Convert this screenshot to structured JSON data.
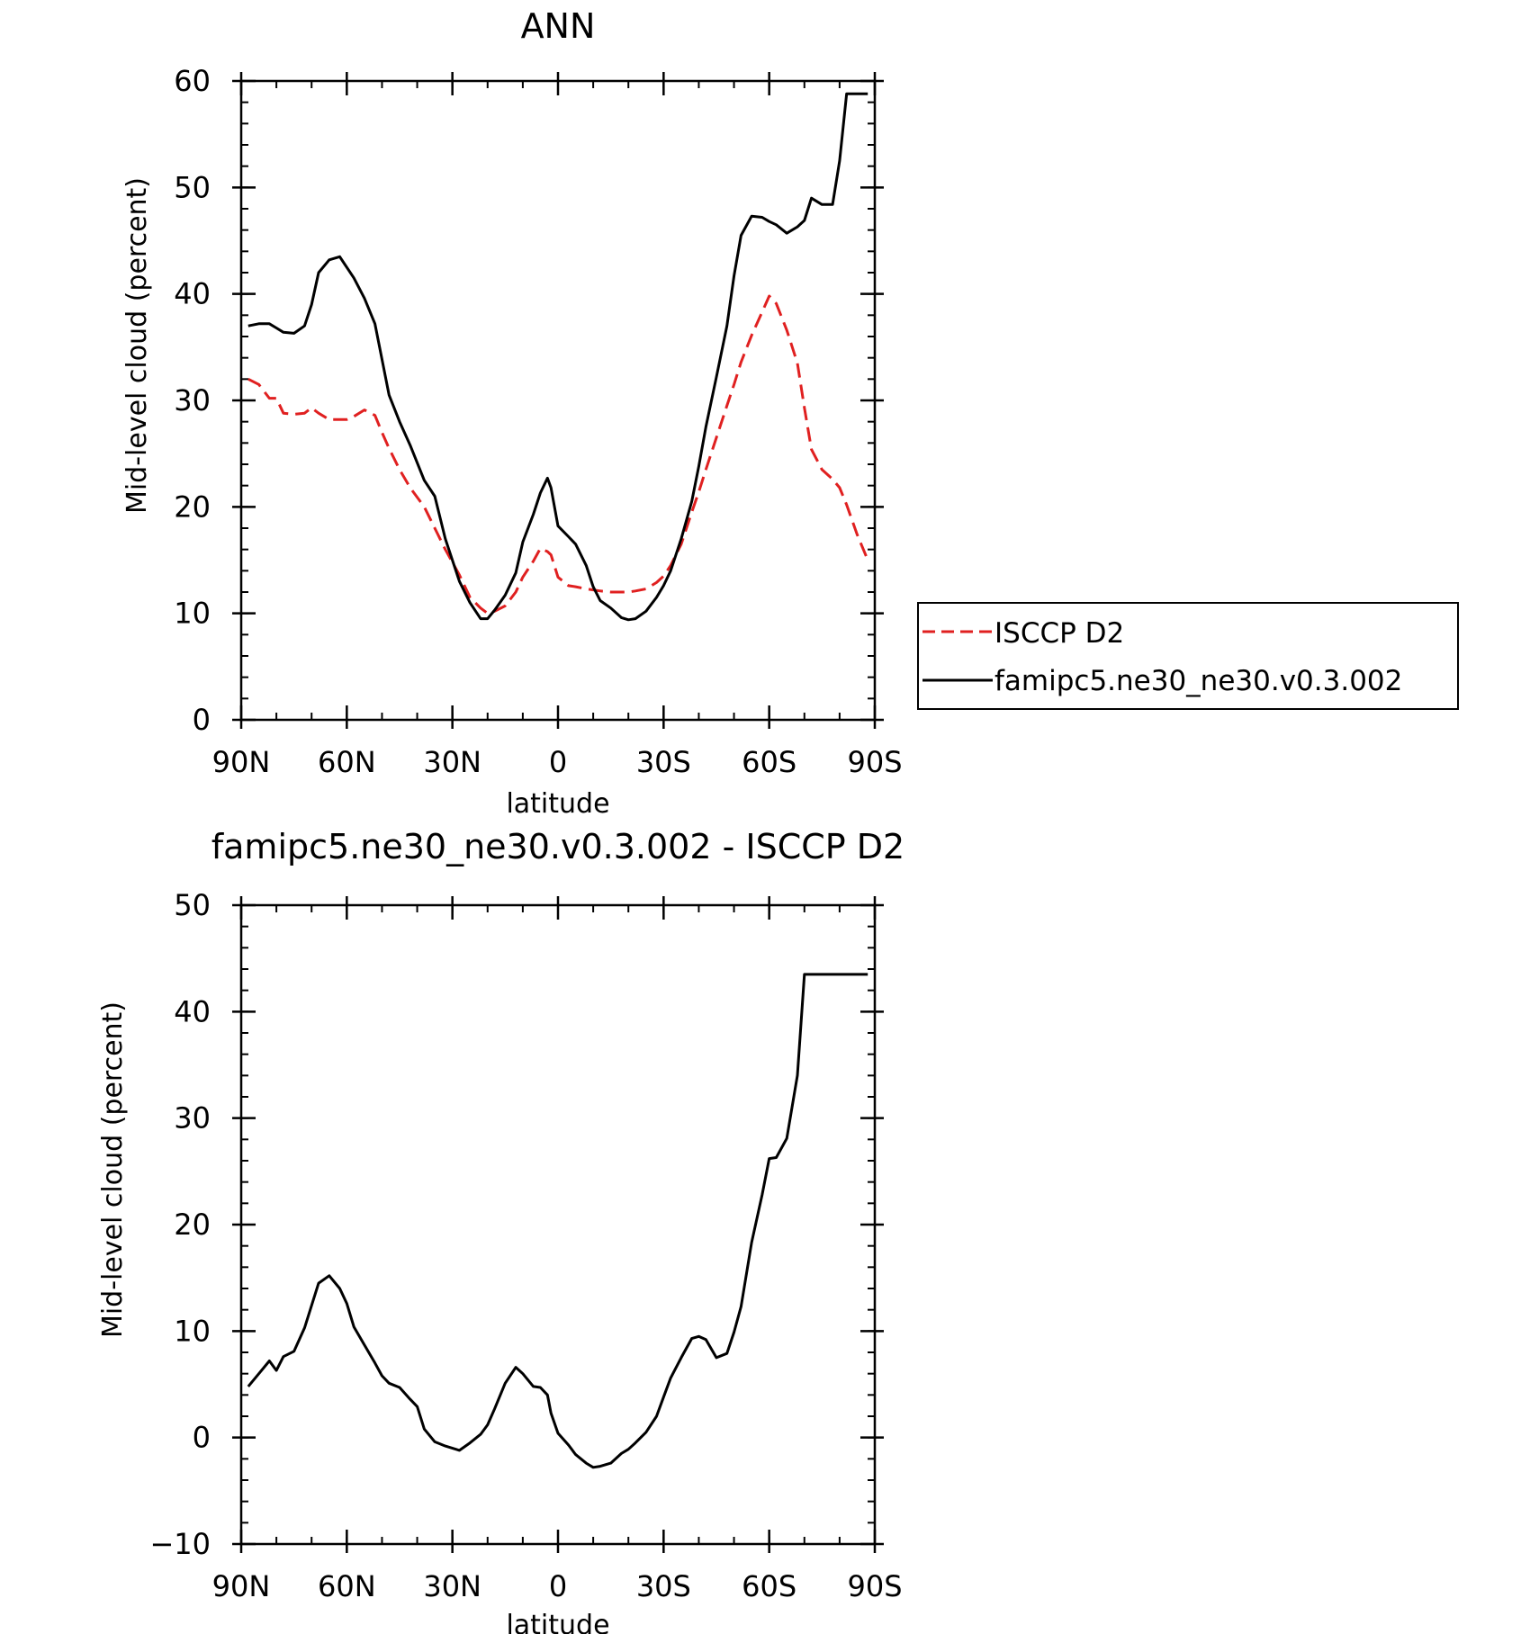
{
  "chart_data": [
    {
      "type": "line",
      "title": "ANN",
      "xlabel": "latitude",
      "ylabel": "Mid-level cloud (percent)",
      "xlim": [
        90,
        -90
      ],
      "ylim": [
        0,
        60
      ],
      "x_ticks": [
        {
          "value": 90,
          "label": "90N"
        },
        {
          "value": 60,
          "label": "60N"
        },
        {
          "value": 30,
          "label": "30N"
        },
        {
          "value": 0,
          "label": "0"
        },
        {
          "value": -30,
          "label": "30S"
        },
        {
          "value": -60,
          "label": "60S"
        },
        {
          "value": -90,
          "label": "90S"
        }
      ],
      "y_ticks": [
        {
          "value": 0,
          "label": "0"
        },
        {
          "value": 10,
          "label": "10"
        },
        {
          "value": 20,
          "label": "20"
        },
        {
          "value": 30,
          "label": "30"
        },
        {
          "value": 40,
          "label": "40"
        },
        {
          "value": 50,
          "label": "50"
        },
        {
          "value": 60,
          "label": "60"
        }
      ],
      "legend": "right",
      "series": [
        {
          "name": "ISCCP D2",
          "color": "#e02020",
          "style": "dashed",
          "x": [
            88,
            85,
            82,
            80,
            78,
            75,
            72,
            70,
            68,
            65,
            62,
            60,
            58,
            55,
            52,
            50,
            48,
            45,
            42,
            38,
            35,
            32,
            28,
            25,
            22,
            20,
            18,
            15,
            12,
            10,
            7,
            5,
            3,
            2,
            0,
            -3,
            -5,
            -8,
            -10,
            -12,
            -15,
            -18,
            -20,
            -22,
            -25,
            -28,
            -30,
            -32,
            -35,
            -38,
            -40,
            -42,
            -45,
            -48,
            -50,
            -52,
            -55,
            -58,
            -60,
            -62,
            -65,
            -68,
            -70,
            -72,
            -75,
            -78,
            -80,
            -82,
            -85,
            -88
          ],
          "y": [
            32,
            31.5,
            30.2,
            30.2,
            28.8,
            28.7,
            28.8,
            29.3,
            28.8,
            28.2,
            28.2,
            28.2,
            28.5,
            29.1,
            28.6,
            27,
            25.5,
            23.5,
            21.8,
            20,
            18,
            16,
            13.6,
            11.5,
            10.5,
            10,
            10.2,
            10.7,
            12,
            13.4,
            14.9,
            16.1,
            15.8,
            15.5,
            13.4,
            12.6,
            12.5,
            12.3,
            12.2,
            12.1,
            12,
            12,
            12,
            12.1,
            12.3,
            12.9,
            13.5,
            14.5,
            16.5,
            19.5,
            21.4,
            23.5,
            26.5,
            29.5,
            31.5,
            33.6,
            36.1,
            38.3,
            39.8,
            39.1,
            36.6,
            33.5,
            29.3,
            25.4,
            23.5,
            22.6,
            21.8,
            20.2,
            17.4,
            15
          ]
        },
        {
          "name": "famipc5.ne30_ne30.v0.3.002",
          "color": "#000000",
          "style": "solid",
          "x": [
            88,
            85,
            82,
            80,
            78,
            75,
            72,
            70,
            68,
            65,
            62,
            60,
            58,
            55,
            52,
            48,
            45,
            42,
            38,
            35,
            32,
            28,
            25,
            22,
            20,
            18,
            15,
            12,
            10,
            7,
            5,
            3,
            2,
            0,
            -3,
            -5,
            -8,
            -10,
            -12,
            -15,
            -18,
            -20,
            -22,
            -25,
            -28,
            -30,
            -32,
            -35,
            -38,
            -40,
            -42,
            -45,
            -48,
            -50,
            -52,
            -55,
            -58,
            -60,
            -62,
            -65,
            -68,
            -70,
            -72,
            -75,
            -78,
            -80,
            -82,
            -85,
            -88
          ],
          "y": [
            37,
            37.2,
            37.2,
            36.8,
            36.4,
            36.3,
            37,
            39,
            42,
            43.2,
            43.5,
            42.5,
            41.5,
            39.6,
            37.2,
            30.5,
            28,
            25.8,
            22.5,
            21,
            17,
            13,
            11,
            9.5,
            9.5,
            10.3,
            11.7,
            13.8,
            16.7,
            19.3,
            21.3,
            22.7,
            21.8,
            18.2,
            17.2,
            16.5,
            14.5,
            12.5,
            11.2,
            10.5,
            9.6,
            9.4,
            9.5,
            10.2,
            11.5,
            12.6,
            14,
            17,
            20.5,
            23.8,
            27.5,
            32.2,
            37,
            41.7,
            45.5,
            47.3,
            47.2,
            46.8,
            46.5,
            45.7,
            46.3,
            46.9,
            49,
            48.4,
            48.4,
            52.5,
            58.8,
            58.8,
            58.8
          ]
        }
      ]
    },
    {
      "type": "line",
      "title": "famipc5.ne30_ne30.v0.3.002 - ISCCP D2",
      "xlabel": "latitude",
      "ylabel": "Mid-level cloud (percent)",
      "xlim": [
        90,
        -90
      ],
      "ylim": [
        -10,
        50
      ],
      "x_ticks": [
        {
          "value": 90,
          "label": "90N"
        },
        {
          "value": 60,
          "label": "60N"
        },
        {
          "value": 30,
          "label": "30N"
        },
        {
          "value": 0,
          "label": "0"
        },
        {
          "value": -30,
          "label": "30S"
        },
        {
          "value": -60,
          "label": "60S"
        },
        {
          "value": -90,
          "label": "90S"
        }
      ],
      "y_ticks": [
        {
          "value": -10,
          "label": "−10"
        },
        {
          "value": 0,
          "label": "0"
        },
        {
          "value": 10,
          "label": "10"
        },
        {
          "value": 20,
          "label": "20"
        },
        {
          "value": 30,
          "label": "30"
        },
        {
          "value": 40,
          "label": "40"
        },
        {
          "value": 50,
          "label": "50"
        }
      ],
      "series": [
        {
          "name": "famipc5.ne30_ne30.v0.3.002 - ISCCP D2",
          "color": "#000000",
          "style": "solid",
          "x": [
            88,
            85,
            82,
            80,
            78,
            75,
            72,
            70,
            68,
            65,
            62,
            60,
            58,
            55,
            52,
            50,
            48,
            45,
            42,
            40,
            38,
            35,
            32,
            28,
            25,
            22,
            20,
            18,
            15,
            12,
            10,
            7,
            5,
            3,
            2,
            0,
            -3,
            -5,
            -8,
            -10,
            -12,
            -15,
            -18,
            -20,
            -22,
            -25,
            -28,
            -30,
            -32,
            -35,
            -38,
            -40,
            -42,
            -45,
            -48,
            -50,
            -52,
            -55,
            -58,
            -60,
            -62,
            -65,
            -68,
            -70,
            -72,
            -75,
            -78,
            -80,
            -82,
            -85,
            -88
          ],
          "y": [
            4.8,
            6,
            7.2,
            6.3,
            7.6,
            8.1,
            10.3,
            12.4,
            14.5,
            15.2,
            14,
            12.6,
            10.4,
            8.7,
            7,
            5.8,
            5.1,
            4.7,
            3.6,
            2.9,
            0.8,
            -0.4,
            -0.8,
            -1.2,
            -0.5,
            0.3,
            1.2,
            2.7,
            5.1,
            6.6,
            6,
            4.8,
            4.7,
            4,
            2.3,
            0.4,
            -0.7,
            -1.6,
            -2.4,
            -2.8,
            -2.7,
            -2.4,
            -1.5,
            -1.1,
            -0.5,
            0.5,
            2,
            3.8,
            5.6,
            7.5,
            9.3,
            9.5,
            9.2,
            7.5,
            7.9,
            9.9,
            12.3,
            18.3,
            22.8,
            26.2,
            26.3,
            28.1,
            34,
            43.5,
            43.5,
            43.5,
            43.5,
            43.5,
            43.5,
            43.5,
            43.5
          ]
        }
      ]
    }
  ]
}
